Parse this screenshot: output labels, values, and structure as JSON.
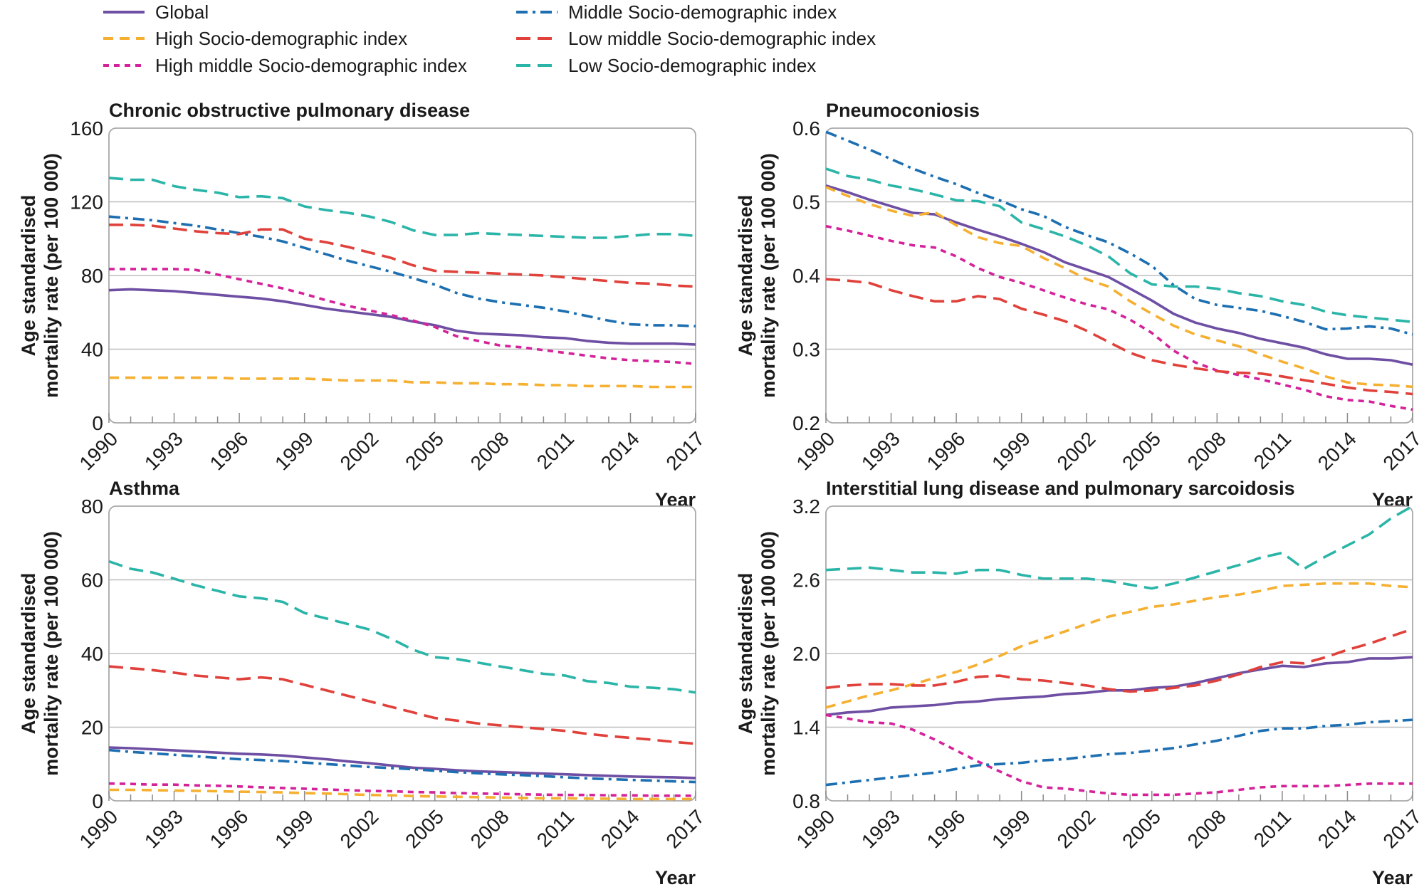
{
  "chart_data": [
    {
      "type": "line",
      "title": "Chronic obstructive pulmonary disease",
      "ylabel": "Age standardised mortality rate (per 100 000)",
      "xlabel": "Year",
      "ylim": [
        0,
        160
      ],
      "yticks": [
        0,
        40,
        80,
        120,
        160
      ],
      "xlim": [
        1990,
        2017
      ],
      "xticks": [
        1990,
        1993,
        1996,
        1999,
        2002,
        2005,
        2008,
        2011,
        2014,
        2017
      ],
      "grid": true,
      "x": [
        1990,
        1991,
        1992,
        1993,
        1994,
        1995,
        1996,
        1997,
        1998,
        1999,
        2000,
        2001,
        2002,
        2003,
        2004,
        2005,
        2006,
        2007,
        2008,
        2009,
        2010,
        2011,
        2012,
        2013,
        2014,
        2015,
        2016,
        2017
      ],
      "series": [
        {
          "name": "Global",
          "values": [
            72,
            72.5,
            72,
            71.5,
            70.5,
            69.5,
            68.5,
            67.5,
            66,
            64,
            62,
            60.5,
            59,
            57.5,
            55,
            53,
            50,
            48.5,
            48,
            47.5,
            46.5,
            46,
            44.5,
            43.5,
            43,
            43,
            43,
            42.5
          ]
        },
        {
          "name": "High Socio-demographic index",
          "values": [
            24.5,
            24.5,
            24.5,
            24.5,
            24.5,
            24.5,
            24,
            24,
            24,
            24,
            23.5,
            23,
            23,
            23,
            22,
            22,
            21.5,
            21.5,
            21,
            21,
            20.5,
            20.5,
            20,
            20,
            20,
            19.5,
            19.5,
            19.5
          ]
        },
        {
          "name": "High middle Socio-demographic index",
          "values": [
            83.5,
            83.5,
            83.5,
            83.5,
            83,
            80.5,
            78,
            75.5,
            73,
            70,
            66.5,
            63.5,
            61,
            58.5,
            55.5,
            52,
            47,
            44.5,
            42,
            41,
            39.5,
            38,
            36.5,
            35,
            34,
            33.5,
            33,
            32
          ]
        },
        {
          "name": "Middle Socio-demographic index",
          "values": [
            112,
            111,
            110,
            108.5,
            107,
            105,
            103,
            101,
            98.5,
            95,
            91.5,
            88,
            85,
            82,
            78.5,
            75,
            70.5,
            67.5,
            65.5,
            64,
            62.5,
            60.5,
            58,
            55.5,
            53.5,
            53,
            53,
            52.5
          ]
        },
        {
          "name": "Low middle Socio-demographic index",
          "values": [
            107.5,
            107.5,
            107,
            105.5,
            104,
            103,
            102.5,
            105,
            105,
            100,
            98,
            95.5,
            92.5,
            89.5,
            85.5,
            82.5,
            82,
            81.5,
            81,
            80.5,
            80,
            79,
            78,
            77,
            76,
            75.5,
            74.5,
            74
          ]
        },
        {
          "name": "Low Socio-demographic index",
          "values": [
            133,
            132,
            132,
            128.5,
            126.5,
            125,
            122.5,
            123,
            122,
            117.5,
            115.5,
            114,
            112,
            109,
            104.5,
            102,
            102,
            103,
            102.5,
            102,
            101.5,
            101,
            100.5,
            100.5,
            101.5,
            102.5,
            102.5,
            101.5
          ]
        }
      ]
    },
    {
      "type": "line",
      "title": "Pneumoconiosis",
      "ylabel": "Age standardised mortality rate (per 100 000)",
      "xlabel": "Year",
      "ylim": [
        0.2,
        0.6
      ],
      "yticks": [
        0.2,
        0.3,
        0.4,
        0.5,
        0.6
      ],
      "xlim": [
        1990,
        2017
      ],
      "xticks": [
        1990,
        1993,
        1996,
        1999,
        2002,
        2005,
        2008,
        2011,
        2014,
        2017
      ],
      "grid": true,
      "x": [
        1990,
        1991,
        1992,
        1993,
        1994,
        1995,
        1996,
        1997,
        1998,
        1999,
        2000,
        2001,
        2002,
        2003,
        2004,
        2005,
        2006,
        2007,
        2008,
        2009,
        2010,
        2011,
        2012,
        2013,
        2014,
        2015,
        2016,
        2017
      ],
      "series": [
        {
          "name": "Global",
          "values": [
            0.522,
            0.513,
            0.503,
            0.494,
            0.485,
            0.483,
            0.472,
            0.462,
            0.453,
            0.443,
            0.432,
            0.418,
            0.408,
            0.398,
            0.382,
            0.366,
            0.348,
            0.336,
            0.328,
            0.322,
            0.314,
            0.308,
            0.302,
            0.293,
            0.287,
            0.287,
            0.285,
            0.279
          ]
        },
        {
          "name": "High Socio-demographic index",
          "values": [
            0.52,
            0.508,
            0.497,
            0.488,
            0.481,
            0.486,
            0.468,
            0.452,
            0.444,
            0.44,
            0.424,
            0.41,
            0.395,
            0.385,
            0.365,
            0.348,
            0.332,
            0.32,
            0.312,
            0.304,
            0.293,
            0.283,
            0.274,
            0.263,
            0.255,
            0.252,
            0.251,
            0.249
          ]
        },
        {
          "name": "High middle Socio-demographic index",
          "values": [
            0.467,
            0.461,
            0.454,
            0.447,
            0.441,
            0.438,
            0.426,
            0.41,
            0.398,
            0.39,
            0.38,
            0.37,
            0.361,
            0.354,
            0.34,
            0.322,
            0.298,
            0.282,
            0.271,
            0.265,
            0.259,
            0.252,
            0.245,
            0.236,
            0.231,
            0.229,
            0.223,
            0.218
          ]
        },
        {
          "name": "Middle Socio-demographic index",
          "values": [
            0.595,
            0.583,
            0.571,
            0.558,
            0.545,
            0.534,
            0.524,
            0.512,
            0.502,
            0.49,
            0.481,
            0.466,
            0.455,
            0.445,
            0.43,
            0.413,
            0.387,
            0.368,
            0.36,
            0.356,
            0.352,
            0.345,
            0.337,
            0.327,
            0.328,
            0.331,
            0.328,
            0.32
          ]
        },
        {
          "name": "Low middle Socio-demographic index",
          "values": [
            0.395,
            0.393,
            0.39,
            0.38,
            0.372,
            0.365,
            0.365,
            0.372,
            0.368,
            0.355,
            0.347,
            0.338,
            0.325,
            0.31,
            0.295,
            0.285,
            0.279,
            0.274,
            0.27,
            0.268,
            0.267,
            0.263,
            0.258,
            0.253,
            0.248,
            0.244,
            0.242,
            0.239
          ]
        },
        {
          "name": "Low Socio-demographic index",
          "values": [
            0.545,
            0.535,
            0.53,
            0.522,
            0.517,
            0.51,
            0.502,
            0.501,
            0.494,
            0.472,
            0.463,
            0.453,
            0.441,
            0.426,
            0.403,
            0.388,
            0.385,
            0.385,
            0.382,
            0.376,
            0.372,
            0.365,
            0.36,
            0.351,
            0.346,
            0.343,
            0.34,
            0.337
          ]
        }
      ]
    },
    {
      "type": "line",
      "title": "Asthma",
      "ylabel": "Age standardised mortality rate (per 100 000)",
      "xlabel": "Year",
      "ylim": [
        0,
        80
      ],
      "yticks": [
        0,
        20,
        40,
        60,
        80
      ],
      "xlim": [
        1990,
        2017
      ],
      "xticks": [
        1990,
        1993,
        1996,
        1999,
        2002,
        2005,
        2008,
        2011,
        2014,
        2017
      ],
      "grid": true,
      "x": [
        1990,
        1991,
        1992,
        1993,
        1994,
        1995,
        1996,
        1997,
        1998,
        1999,
        2000,
        2001,
        2002,
        2003,
        2004,
        2005,
        2006,
        2007,
        2008,
        2009,
        2010,
        2011,
        2012,
        2013,
        2014,
        2015,
        2016,
        2017
      ],
      "series": [
        {
          "name": "Global",
          "values": [
            14.5,
            14.3,
            14,
            13.7,
            13.4,
            13.1,
            12.8,
            12.6,
            12.3,
            11.8,
            11.3,
            10.7,
            10.2,
            9.6,
            9,
            8.7,
            8.3,
            8,
            7.8,
            7.6,
            7.4,
            7.2,
            7,
            6.8,
            6.6,
            6.5,
            6.4,
            6.2
          ]
        },
        {
          "name": "High Socio-demographic index",
          "values": [
            3,
            3,
            2.9,
            2.8,
            2.7,
            2.6,
            2.5,
            2.4,
            2.3,
            2.1,
            2,
            1.8,
            1.6,
            1.5,
            1.3,
            1.2,
            1.1,
            1,
            0.9,
            0.8,
            0.7,
            0.7,
            0.6,
            0.6,
            0.5,
            0.5,
            0.5,
            0.5
          ]
        },
        {
          "name": "High middle Socio-demographic index",
          "values": [
            4.7,
            4.6,
            4.4,
            4.4,
            4.2,
            4.1,
            3.9,
            3.7,
            3.5,
            3.3,
            3.1,
            2.9,
            2.7,
            2.6,
            2.4,
            2.3,
            2.1,
            2,
            1.9,
            1.8,
            1.7,
            1.6,
            1.6,
            1.5,
            1.5,
            1.4,
            1.4,
            1.4
          ]
        },
        {
          "name": "Middle Socio-demographic index",
          "values": [
            13.8,
            13.3,
            12.9,
            12.5,
            12.1,
            11.7,
            11.3,
            11.1,
            10.8,
            10.4,
            10,
            9.6,
            9.2,
            8.9,
            8.6,
            8.2,
            7.8,
            7.5,
            7.2,
            7,
            6.7,
            6.4,
            6.1,
            5.9,
            5.7,
            5.5,
            5.3,
            5.1
          ]
        },
        {
          "name": "Low middle Socio-demographic index",
          "values": [
            36.5,
            36,
            35.5,
            34.8,
            34,
            33.5,
            33,
            33.5,
            33,
            31.5,
            30,
            28.5,
            27,
            25.5,
            24,
            22.5,
            21.8,
            21,
            20.5,
            20,
            19.5,
            19,
            18.2,
            17.6,
            17.1,
            16.6,
            16,
            15.5
          ]
        },
        {
          "name": "Low Socio-demographic index",
          "values": [
            65,
            63,
            62,
            60.3,
            58.5,
            57,
            55.5,
            55,
            54,
            51,
            49.5,
            48,
            46.5,
            44,
            41,
            39,
            38.5,
            37.5,
            36.5,
            35.5,
            34.5,
            34,
            32.5,
            32,
            31,
            30.7,
            30.3,
            29.4
          ]
        }
      ]
    },
    {
      "type": "line",
      "title": "Interstitial lung disease and pulmonary sarcoidosis",
      "ylabel": "Age standardised mortality rate (per 100 000)",
      "xlabel": "Year",
      "ylim": [
        0.8,
        3.2
      ],
      "yticks": [
        0.8,
        1.4,
        2.0,
        2.6,
        3.2
      ],
      "xlim": [
        1990,
        2017
      ],
      "xticks": [
        1990,
        1993,
        1996,
        1999,
        2002,
        2005,
        2008,
        2011,
        2014,
        2017
      ],
      "grid": true,
      "x": [
        1990,
        1991,
        1992,
        1993,
        1994,
        1995,
        1996,
        1997,
        1998,
        1999,
        2000,
        2001,
        2002,
        2003,
        2004,
        2005,
        2006,
        2007,
        2008,
        2009,
        2010,
        2011,
        2012,
        2013,
        2014,
        2015,
        2016,
        2017
      ],
      "series": [
        {
          "name": "Global",
          "values": [
            1.5,
            1.52,
            1.53,
            1.56,
            1.57,
            1.58,
            1.6,
            1.61,
            1.63,
            1.64,
            1.65,
            1.67,
            1.68,
            1.7,
            1.7,
            1.72,
            1.73,
            1.76,
            1.8,
            1.84,
            1.87,
            1.9,
            1.89,
            1.92,
            1.93,
            1.96,
            1.96,
            1.97
          ]
        },
        {
          "name": "High Socio-demographic index",
          "values": [
            1.56,
            1.61,
            1.66,
            1.7,
            1.75,
            1.8,
            1.85,
            1.91,
            1.98,
            2.06,
            2.12,
            2.18,
            2.24,
            2.3,
            2.34,
            2.38,
            2.4,
            2.43,
            2.46,
            2.48,
            2.51,
            2.55,
            2.56,
            2.57,
            2.57,
            2.57,
            2.55,
            2.54
          ]
        },
        {
          "name": "High middle Socio-demographic index",
          "values": [
            1.5,
            1.47,
            1.44,
            1.43,
            1.38,
            1.3,
            1.21,
            1.12,
            1.04,
            0.96,
            0.91,
            0.9,
            0.88,
            0.86,
            0.85,
            0.85,
            0.85,
            0.86,
            0.87,
            0.89,
            0.91,
            0.92,
            0.92,
            0.92,
            0.93,
            0.94,
            0.94,
            0.94
          ]
        },
        {
          "name": "Middle Socio-demographic index",
          "values": [
            0.93,
            0.95,
            0.97,
            0.99,
            1.01,
            1.03,
            1.06,
            1.09,
            1.1,
            1.11,
            1.13,
            1.14,
            1.16,
            1.18,
            1.19,
            1.21,
            1.23,
            1.26,
            1.29,
            1.33,
            1.37,
            1.39,
            1.39,
            1.41,
            1.42,
            1.44,
            1.45,
            1.46
          ]
        },
        {
          "name": "Low middle Socio-demographic index",
          "values": [
            1.72,
            1.74,
            1.75,
            1.75,
            1.74,
            1.74,
            1.77,
            1.81,
            1.82,
            1.79,
            1.78,
            1.76,
            1.74,
            1.71,
            1.69,
            1.7,
            1.72,
            1.74,
            1.78,
            1.83,
            1.89,
            1.93,
            1.92,
            1.97,
            2.03,
            2.08,
            2.14,
            2.2
          ]
        },
        {
          "name": "Low Socio-demographic index",
          "values": [
            2.68,
            2.69,
            2.7,
            2.68,
            2.66,
            2.66,
            2.65,
            2.68,
            2.68,
            2.64,
            2.61,
            2.61,
            2.61,
            2.59,
            2.56,
            2.53,
            2.57,
            2.62,
            2.67,
            2.72,
            2.78,
            2.82,
            2.69,
            2.79,
            2.88,
            2.97,
            3.1,
            3.2
          ]
        }
      ]
    }
  ],
  "styles": [
    {
      "name": "Global",
      "color": "#6e4fa3",
      "dash": "solid"
    },
    {
      "name": "High Socio-demographic index",
      "color": "#f5b031",
      "dash": "dash"
    },
    {
      "name": "High middle Socio-demographic index",
      "color": "#d4239a",
      "dash": "short-dash"
    },
    {
      "name": "Middle Socio-demographic index",
      "color": "#1d6fb1",
      "dash": "dash-dot"
    },
    {
      "name": "Low middle Socio-demographic index",
      "color": "#e0413b",
      "dash": "long-dash"
    },
    {
      "name": "Low Socio-demographic index",
      "color": "#2bb5a8",
      "dash": "long-dash"
    }
  ]
}
